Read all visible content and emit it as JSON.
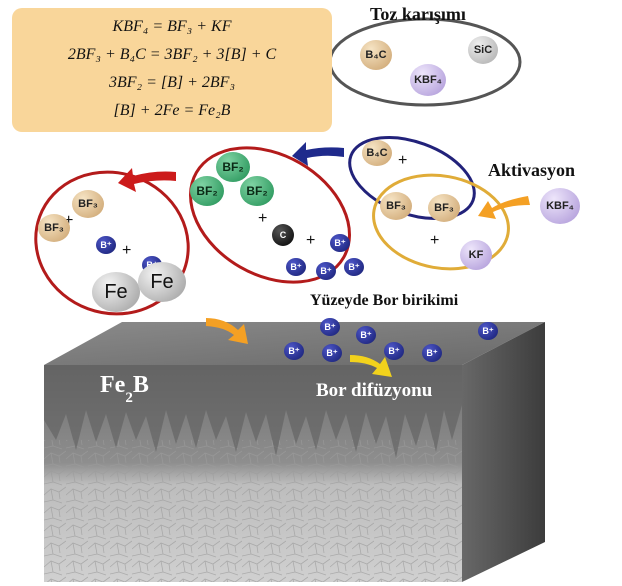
{
  "equations": [
    "KBF₄ = BF₃ + KF",
    "2BF₃ + B₄C = 3BF₂ + 3[B] + C",
    "3BF₂ = [B] + 2BF₃",
    "[B] + 2Fe = Fe₂B"
  ],
  "headings": {
    "powder_mixture": "Toz karışımı",
    "activation": "Aktivasyon",
    "surface_boron": "Yüzeyde Bor birikimi",
    "boron_diffusion": "Bor difüzyonu",
    "fe2b_main": "Fe",
    "fe2b_sub": "2",
    "fe2b_end": "B"
  },
  "molecules": {
    "b4c": "B₄C",
    "sic": "SiC",
    "kbf4": "KBF₄",
    "bf3": "BF₃",
    "bf2": "BF₂",
    "kf": "KF",
    "c": "C",
    "b_ion": "B⁺",
    "fe": "Fe"
  },
  "plus_sign": "+",
  "colors": {
    "equation_box": "#f9d69a",
    "powder_ring": "#555555",
    "activation_ring": "#e0ac38",
    "reaction_ring": "#22227a",
    "bf2_ring": "#b31b1b",
    "fe_ring": "#b31b1b",
    "arrow_orange": "#f4a024",
    "arrow_blue": "#1f2a8c",
    "arrow_red": "#cc1b1b",
    "arrow_yellow": "#f2d21c",
    "block_top": "#7c7c7c",
    "block_side": "#4e4e4e"
  }
}
